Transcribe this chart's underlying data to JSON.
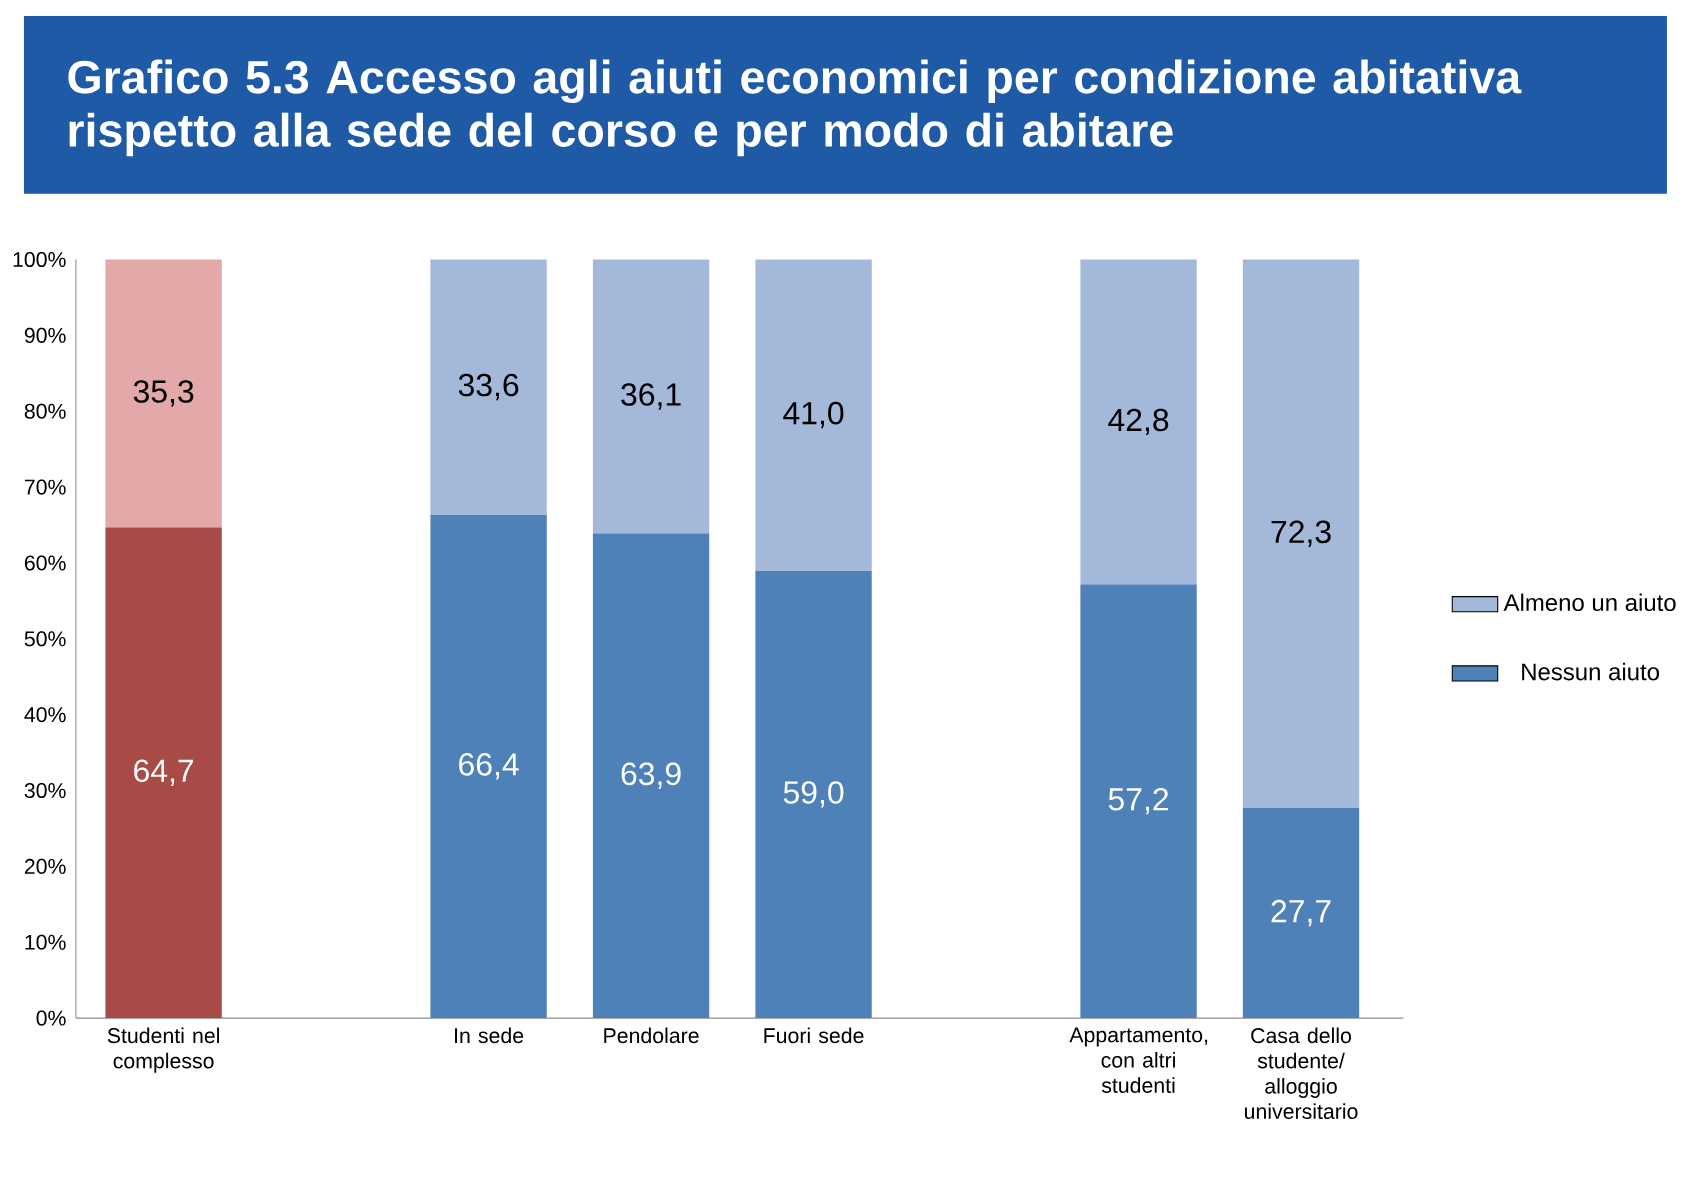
{
  "chart_data": {
    "type": "bar",
    "stacked": true,
    "title": "Grafico 5.3  Accesso agli aiuti economici per condizione abitativa rispetto alla sede del corso e per modo di abitare",
    "categories": [
      "Studenti nel complesso",
      null,
      "In sede",
      "Pendolare",
      "Fuori sede",
      null,
      "Appartamento, con altri studenti",
      "Casa dello studente/ alloggio universitario"
    ],
    "series": [
      {
        "name": "Nessun aiuto",
        "color": "#4f81b9",
        "colors": [
          "#a84a45",
          null,
          "#4f81b9",
          "#4f81b9",
          "#4f81b9",
          null,
          "#4f81b9",
          "#4f81b9"
        ],
        "values": [
          64.7,
          null,
          66.4,
          63.9,
          59.0,
          null,
          57.2,
          27.7
        ],
        "value_labels": [
          "64,7",
          null,
          "66,4",
          "63,9",
          "59,0",
          null,
          "57,2",
          "27,7"
        ]
      },
      {
        "name": "Almeno un aiuto",
        "color": "#a4b8da",
        "colors": [
          "#e3a9a8",
          null,
          "#a4b8da",
          "#a4b8da",
          "#a4b8da",
          null,
          "#a4b8da",
          "#a4b8da"
        ],
        "values": [
          35.3,
          null,
          33.6,
          36.1,
          41.0,
          null,
          42.8,
          72.3
        ],
        "value_labels": [
          "35,3",
          null,
          "33,6",
          "36,1",
          "41,0",
          null,
          "42,8",
          "72,3"
        ]
      }
    ],
    "ylim": [
      0,
      100
    ],
    "yticks": [
      {
        "value": 0,
        "label": "0%"
      },
      {
        "value": 10,
        "label": "10%"
      },
      {
        "value": 20,
        "label": "20%"
      },
      {
        "value": 30,
        "label": "30%"
      },
      {
        "value": 40,
        "label": "40%"
      },
      {
        "value": 50,
        "label": "50%"
      },
      {
        "value": 60,
        "label": "60%"
      },
      {
        "value": 70,
        "label": "70%"
      },
      {
        "value": 80,
        "label": "80%"
      },
      {
        "value": 90,
        "label": "90%"
      },
      {
        "value": 100,
        "label": "100%"
      }
    ],
    "legend": "right"
  }
}
